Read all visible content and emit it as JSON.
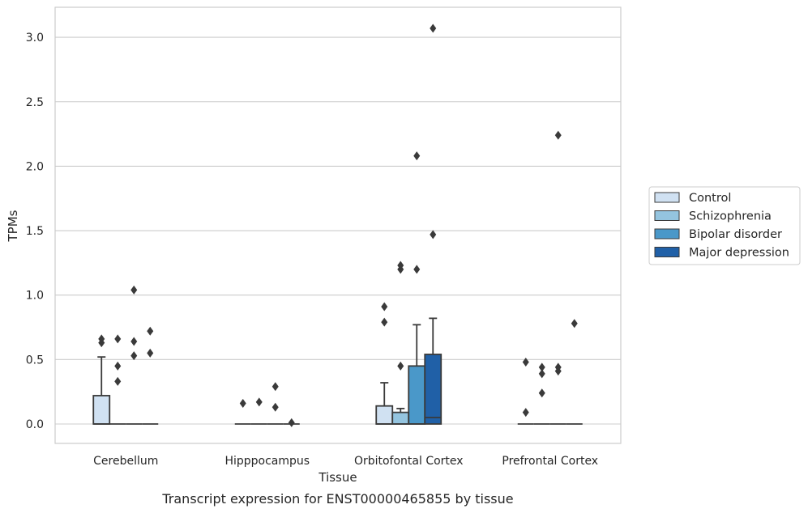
{
  "chart_data": {
    "type": "box",
    "xlabel": "Tissue",
    "ylabel": "TPMs",
    "caption": "Transcript expression for ENST00000465855 by tissue",
    "categories": [
      "Cerebellum",
      "Hipppocampus",
      "Orbitofontal Cortex",
      "Prefrontal Cortex"
    ],
    "yticks": [
      "0.0",
      "0.5",
      "1.0",
      "1.5",
      "2.0",
      "2.5",
      "3.0"
    ],
    "ytick_values": [
      0,
      0.5,
      1.0,
      1.5,
      2.0,
      2.5,
      3.0
    ],
    "ylim": [
      -0.15,
      3.23
    ],
    "grid": "horizontal",
    "legend_position": "right",
    "series": [
      {
        "name": "Control",
        "color": "#d0e1f2",
        "boxes": [
          {
            "q1": 0,
            "median": 0,
            "q3": 0.22,
            "whisker_low": 0,
            "whisker_high": 0.52,
            "outliers": [
              0.63,
              0.66
            ]
          },
          {
            "q1": 0,
            "median": 0,
            "q3": 0,
            "whisker_low": 0,
            "whisker_high": 0,
            "outliers": [
              0.16
            ]
          },
          {
            "q1": 0,
            "median": 0,
            "q3": 0.14,
            "whisker_low": 0,
            "whisker_high": 0.32,
            "outliers": [
              0.79,
              0.91
            ]
          },
          {
            "q1": 0,
            "median": 0,
            "q3": 0,
            "whisker_low": 0,
            "whisker_high": 0,
            "outliers": [
              0.09,
              0.48
            ]
          }
        ]
      },
      {
        "name": "Schizophrenia",
        "color": "#94c4df",
        "boxes": [
          {
            "q1": 0,
            "median": 0,
            "q3": 0,
            "whisker_low": 0,
            "whisker_high": 0,
            "outliers": [
              0.33,
              0.45,
              0.66
            ]
          },
          {
            "q1": 0,
            "median": 0,
            "q3": 0,
            "whisker_low": 0,
            "whisker_high": 0,
            "outliers": [
              0.17
            ]
          },
          {
            "q1": 0,
            "median": 0,
            "q3": 0.09,
            "whisker_low": 0,
            "whisker_high": 0.12,
            "outliers": [
              0.45,
              1.2,
              1.23
            ]
          },
          {
            "q1": 0,
            "median": 0,
            "q3": 0,
            "whisker_low": 0,
            "whisker_high": 0,
            "outliers": [
              0.24,
              0.39,
              0.44
            ]
          }
        ]
      },
      {
        "name": "Bipolar disorder",
        "color": "#4a98c9",
        "boxes": [
          {
            "q1": 0,
            "median": 0,
            "q3": 0,
            "whisker_low": 0,
            "whisker_high": 0,
            "outliers": [
              0.53,
              0.64,
              1.04
            ]
          },
          {
            "q1": 0,
            "median": 0,
            "q3": 0,
            "whisker_low": 0,
            "whisker_high": 0,
            "outliers": [
              0.13,
              0.29
            ]
          },
          {
            "q1": 0,
            "median": 0,
            "q3": 0.45,
            "whisker_low": 0,
            "whisker_high": 0.77,
            "outliers": [
              1.2,
              2.08
            ]
          },
          {
            "q1": 0,
            "median": 0,
            "q3": 0,
            "whisker_low": 0,
            "whisker_high": 0,
            "outliers": [
              0.41,
              0.44,
              2.24
            ]
          }
        ]
      },
      {
        "name": "Major depression",
        "color": "#2060a7",
        "boxes": [
          {
            "q1": 0,
            "median": 0,
            "q3": 0,
            "whisker_low": 0,
            "whisker_high": 0,
            "outliers": [
              0.55,
              0.72
            ]
          },
          {
            "q1": 0,
            "median": 0,
            "q3": 0,
            "whisker_low": 0,
            "whisker_high": 0,
            "outliers": [
              0.01
            ]
          },
          {
            "q1": 0,
            "median": 0.05,
            "q3": 0.54,
            "whisker_low": 0,
            "whisker_high": 0.82,
            "outliers": [
              1.47,
              3.07
            ]
          },
          {
            "q1": 0,
            "median": 0,
            "q3": 0,
            "whisker_low": 0,
            "whisker_high": 0,
            "outliers": [
              0.78
            ]
          }
        ]
      }
    ]
  }
}
